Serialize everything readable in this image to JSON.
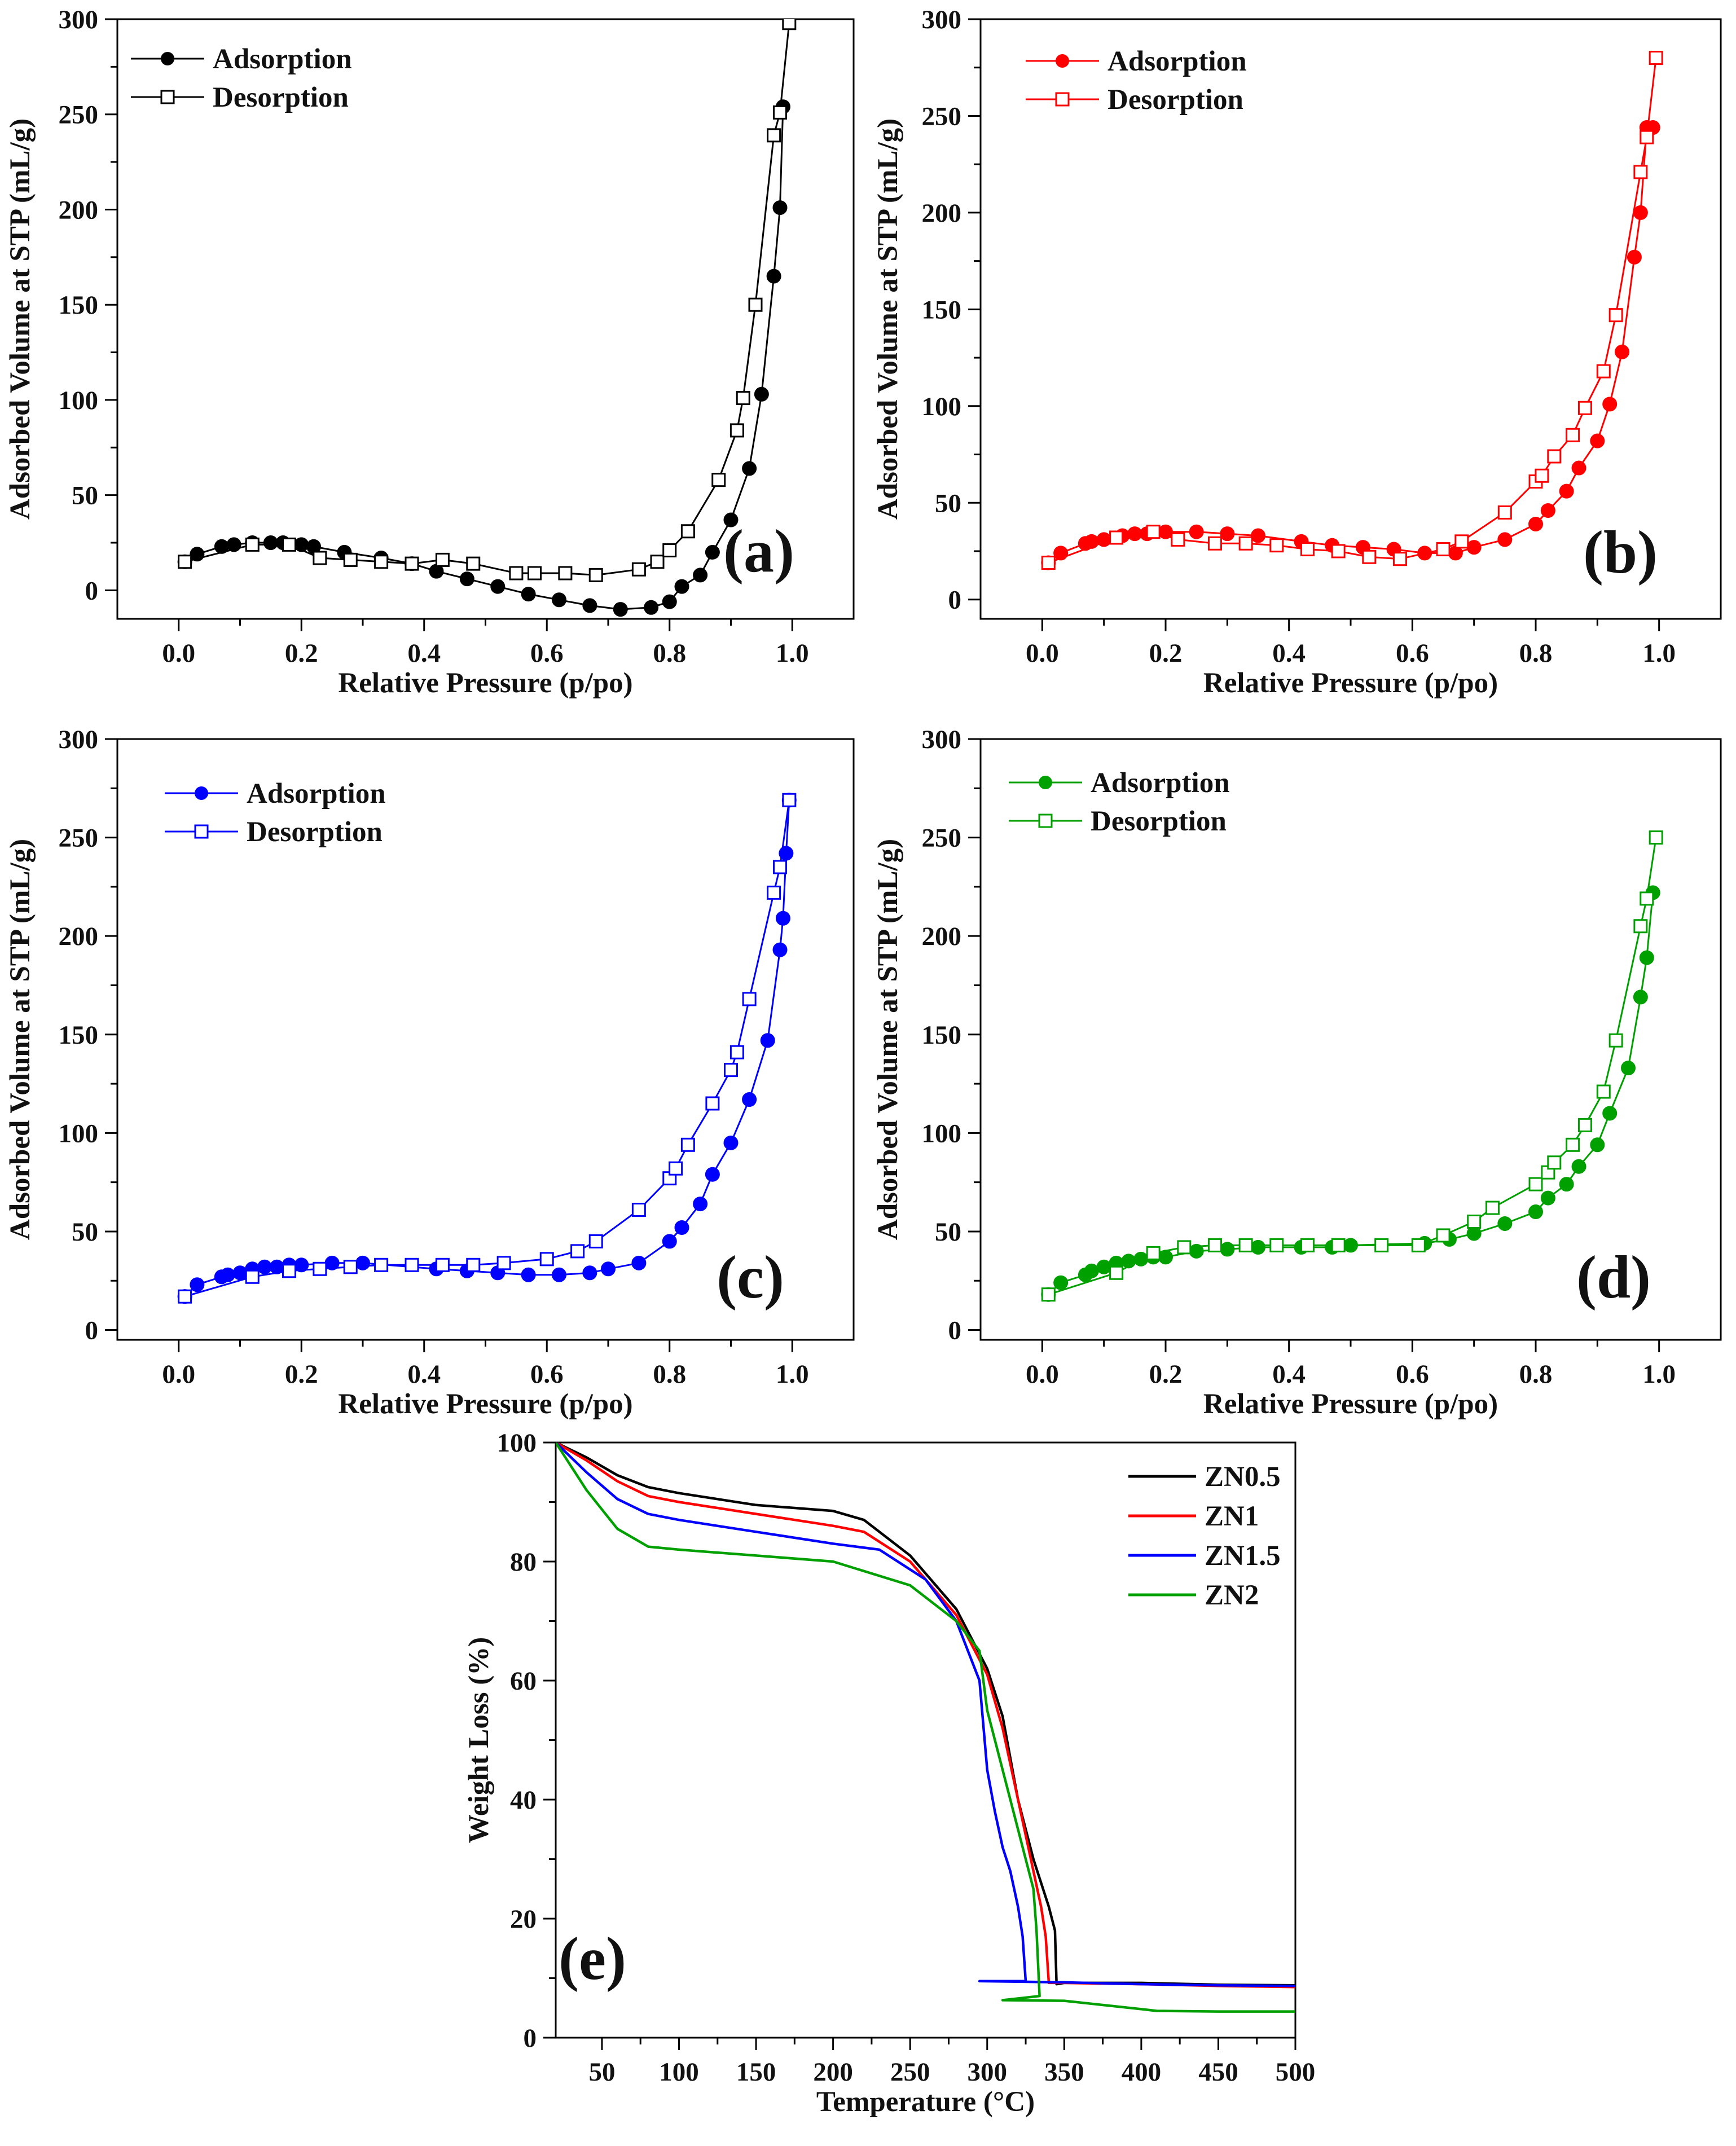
{
  "chart_data": [
    {
      "id": "a",
      "type": "line",
      "panel_label": "(a)",
      "title": "",
      "xlabel": "Relative Pressure (p/po)",
      "ylabel": "Adsorbed Volume at STP (mL/g)",
      "xlim": [
        -0.1,
        1.1
      ],
      "ylim": [
        -15,
        300
      ],
      "xticks": [
        0.0,
        0.2,
        0.4,
        0.6,
        0.8,
        1.0
      ],
      "xtick_labels": [
        "0.0",
        "0.2",
        "0.4",
        "0.6",
        "0.8",
        "1.0"
      ],
      "yticks": [
        0,
        50,
        100,
        150,
        200,
        250,
        300
      ],
      "ytick_labels": [
        "0",
        "50",
        "100",
        "150",
        "200",
        "250",
        "300"
      ],
      "color": "#000000",
      "legend_position": "top-left",
      "series": [
        {
          "name": "Adsorption",
          "marker": "filled-circle",
          "x": [
            0.01,
            0.03,
            0.07,
            0.09,
            0.12,
            0.15,
            0.17,
            0.2,
            0.22,
            0.27,
            0.33,
            0.38,
            0.42,
            0.47,
            0.52,
            0.57,
            0.62,
            0.67,
            0.72,
            0.77,
            0.8,
            0.82,
            0.85,
            0.87,
            0.9,
            0.93,
            0.95,
            0.97,
            0.98,
            0.985
          ],
          "y": [
            15,
            19,
            23,
            24,
            25,
            25,
            25,
            24,
            23,
            20,
            17,
            14,
            10,
            6,
            2,
            -2,
            -5,
            -8,
            -10,
            -9,
            -6,
            2,
            8,
            20,
            37,
            64,
            103,
            165,
            201,
            254
          ]
        },
        {
          "name": "Desorption",
          "marker": "open-square",
          "x": [
            0.01,
            0.12,
            0.18,
            0.23,
            0.28,
            0.33,
            0.38,
            0.43,
            0.48,
            0.55,
            0.58,
            0.63,
            0.68,
            0.75,
            0.78,
            0.8,
            0.83,
            0.88,
            0.91,
            0.92,
            0.94,
            0.97,
            0.98,
            0.995
          ],
          "y": [
            15,
            24,
            24,
            17,
            16,
            15,
            14,
            16,
            14,
            9,
            9,
            9,
            8,
            11,
            15,
            21,
            31,
            58,
            84,
            101,
            150,
            239,
            251,
            298
          ]
        }
      ]
    },
    {
      "id": "b",
      "type": "line",
      "panel_label": "(b)",
      "title": "",
      "xlabel": "Relative Pressure (p/po)",
      "ylabel": "Adsorbed Volume at STP (mL/g)",
      "xlim": [
        -0.1,
        1.1
      ],
      "ylim": [
        -10,
        300
      ],
      "xticks": [
        0.0,
        0.2,
        0.4,
        0.6,
        0.8,
        1.0
      ],
      "xtick_labels": [
        "0.0",
        "0.2",
        "0.4",
        "0.6",
        "0.8",
        "1.0"
      ],
      "yticks": [
        0,
        50,
        100,
        150,
        200,
        250,
        300
      ],
      "ytick_labels": [
        "0",
        "50",
        "100",
        "150",
        "200",
        "250",
        "300"
      ],
      "color": "#ff0000",
      "legend_position": "top-left",
      "series": [
        {
          "name": "Adsorption",
          "marker": "filled-circle",
          "x": [
            0.01,
            0.03,
            0.07,
            0.08,
            0.1,
            0.13,
            0.15,
            0.17,
            0.2,
            0.25,
            0.3,
            0.35,
            0.42,
            0.47,
            0.52,
            0.57,
            0.62,
            0.67,
            0.7,
            0.75,
            0.8,
            0.82,
            0.85,
            0.87,
            0.9,
            0.92,
            0.94,
            0.96,
            0.97,
            0.98,
            0.99
          ],
          "y": [
            19,
            24,
            29,
            30,
            31,
            33,
            34,
            34,
            35,
            35,
            34,
            33,
            30,
            28,
            27,
            26,
            24,
            24,
            27,
            31,
            39,
            46,
            56,
            68,
            82,
            101,
            128,
            177,
            200,
            244,
            244
          ]
        },
        {
          "name": "Desorption",
          "marker": "open-square",
          "x": [
            0.01,
            0.12,
            0.18,
            0.22,
            0.28,
            0.33,
            0.38,
            0.43,
            0.48,
            0.53,
            0.58,
            0.65,
            0.68,
            0.75,
            0.8,
            0.81,
            0.83,
            0.86,
            0.88,
            0.91,
            0.93,
            0.97,
            0.98,
            0.995
          ],
          "y": [
            19,
            32,
            35,
            31,
            29,
            29,
            28,
            26,
            25,
            22,
            21,
            26,
            30,
            45,
            61,
            64,
            74,
            85,
            99,
            118,
            147,
            221,
            239,
            280
          ]
        }
      ]
    },
    {
      "id": "c",
      "type": "line",
      "panel_label": "(c)",
      "title": "",
      "xlabel": "Relative Pressure (p/po)",
      "ylabel": "Adsorbed Volume at STP (mL/g)",
      "xlim": [
        -0.1,
        1.1
      ],
      "ylim": [
        -5,
        300
      ],
      "xticks": [
        0.0,
        0.2,
        0.4,
        0.6,
        0.8,
        1.0
      ],
      "xtick_labels": [
        "0.0",
        "0.2",
        "0.4",
        "0.6",
        "0.8",
        "1.0"
      ],
      "yticks": [
        0,
        50,
        100,
        150,
        200,
        250,
        300
      ],
      "ytick_labels": [
        "0",
        "50",
        "100",
        "150",
        "200",
        "250",
        "300"
      ],
      "color": "#0000ff",
      "legend_position": "top-left",
      "series": [
        {
          "name": "Adsorption",
          "marker": "filled-circle",
          "x": [
            0.01,
            0.03,
            0.07,
            0.08,
            0.1,
            0.12,
            0.14,
            0.16,
            0.18,
            0.2,
            0.25,
            0.3,
            0.42,
            0.47,
            0.52,
            0.57,
            0.62,
            0.67,
            0.7,
            0.75,
            0.8,
            0.82,
            0.85,
            0.87,
            0.9,
            0.93,
            0.96,
            0.98,
            0.985,
            0.99,
            0.995
          ],
          "y": [
            17,
            23,
            27,
            28,
            29,
            31,
            32,
            32,
            33,
            33,
            34,
            34,
            31,
            30,
            29,
            28,
            28,
            29,
            31,
            34,
            45,
            52,
            64,
            79,
            95,
            117,
            147,
            193,
            209,
            242,
            269
          ]
        },
        {
          "name": "Desorption",
          "marker": "open-square",
          "x": [
            0.01,
            0.12,
            0.18,
            0.23,
            0.28,
            0.33,
            0.38,
            0.43,
            0.48,
            0.53,
            0.6,
            0.65,
            0.68,
            0.75,
            0.8,
            0.81,
            0.83,
            0.87,
            0.9,
            0.91,
            0.93,
            0.97,
            0.98,
            0.995
          ],
          "y": [
            17,
            27,
            30,
            31,
            32,
            33,
            33,
            33,
            33,
            34,
            36,
            40,
            45,
            61,
            77,
            82,
            94,
            115,
            132,
            141,
            168,
            222,
            235,
            269
          ]
        }
      ]
    },
    {
      "id": "d",
      "type": "line",
      "panel_label": "(d)",
      "title": "",
      "xlabel": "Relative Pressure (p/po)",
      "ylabel": "Adsorbed Volume at STP (mL/g)",
      "xlim": [
        -0.1,
        1.1
      ],
      "ylim": [
        -5,
        300
      ],
      "xticks": [
        0.0,
        0.2,
        0.4,
        0.6,
        0.8,
        1.0
      ],
      "xtick_labels": [
        "0.0",
        "0.2",
        "0.4",
        "0.6",
        "0.8",
        "1.0"
      ],
      "yticks": [
        0,
        50,
        100,
        150,
        200,
        250,
        300
      ],
      "ytick_labels": [
        "0",
        "50",
        "100",
        "150",
        "200",
        "250",
        "300"
      ],
      "color": "#00a000",
      "legend_position": "top-left",
      "series": [
        {
          "name": "Adsorption",
          "marker": "filled-circle",
          "x": [
            0.01,
            0.03,
            0.07,
            0.08,
            0.1,
            0.12,
            0.14,
            0.16,
            0.18,
            0.2,
            0.25,
            0.3,
            0.35,
            0.42,
            0.47,
            0.5,
            0.62,
            0.66,
            0.7,
            0.75,
            0.8,
            0.82,
            0.85,
            0.87,
            0.9,
            0.92,
            0.95,
            0.97,
            0.98,
            0.99
          ],
          "y": [
            18,
            24,
            28,
            30,
            32,
            34,
            35,
            36,
            37,
            37,
            40,
            41,
            42,
            42,
            42,
            43,
            44,
            46,
            49,
            54,
            60,
            67,
            74,
            83,
            94,
            110,
            133,
            169,
            189,
            222
          ]
        },
        {
          "name": "Desorption",
          "marker": "open-square",
          "x": [
            0.01,
            0.12,
            0.18,
            0.23,
            0.28,
            0.33,
            0.38,
            0.43,
            0.48,
            0.55,
            0.61,
            0.65,
            0.7,
            0.73,
            0.8,
            0.82,
            0.83,
            0.86,
            0.88,
            0.91,
            0.93,
            0.97,
            0.98,
            0.995
          ],
          "y": [
            18,
            29,
            39,
            42,
            43,
            43,
            43,
            43,
            43,
            43,
            43,
            48,
            55,
            62,
            74,
            80,
            85,
            94,
            104,
            121,
            147,
            205,
            219,
            250
          ]
        }
      ]
    },
    {
      "id": "e",
      "type": "line",
      "panel_label": "(e)",
      "title": "",
      "xlabel": "Temperature (°C)",
      "ylabel": "Weight Loss (%)",
      "xlim": [
        20,
        500
      ],
      "ylim": [
        0,
        100
      ],
      "xticks": [
        50,
        100,
        150,
        200,
        250,
        300,
        350,
        400,
        450,
        500
      ],
      "xtick_labels": [
        "50",
        "100",
        "150",
        "200",
        "250",
        "300",
        "350",
        "400",
        "450",
        "500"
      ],
      "yticks": [
        0,
        20,
        40,
        60,
        80,
        100
      ],
      "ytick_labels": [
        "0",
        "20",
        "40",
        "60",
        "80",
        "100"
      ],
      "legend_position": "top-right",
      "series": [
        {
          "name": "ZN0.5",
          "color": "#000000",
          "x": [
            20,
            40,
            60,
            80,
            100,
            150,
            200,
            220,
            250,
            280,
            300,
            310,
            320,
            330,
            340,
            344,
            345,
            350,
            400,
            450,
            500
          ],
          "y": [
            100,
            97.5,
            94.5,
            92.5,
            91.5,
            89.5,
            88.5,
            87,
            81,
            72,
            62,
            54,
            40,
            30,
            22,
            18,
            9,
            9.2,
            9.2,
            8.9,
            8.8
          ]
        },
        {
          "name": "ZN1",
          "color": "#ff0000",
          "x": [
            20,
            40,
            60,
            80,
            100,
            150,
            200,
            220,
            250,
            280,
            300,
            310,
            320,
            330,
            335,
            338,
            340,
            350,
            400,
            450,
            500
          ],
          "y": [
            100,
            97,
            93.5,
            91,
            90,
            88,
            86,
            85,
            80,
            71,
            61,
            52,
            40,
            28,
            22,
            17,
            9.2,
            9.2,
            9,
            8.7,
            8.5
          ]
        },
        {
          "name": "ZN1.5",
          "color": "#0000ff",
          "x": [
            20,
            40,
            60,
            80,
            100,
            150,
            200,
            230,
            260,
            280,
            295,
            300,
            305,
            310,
            315,
            320,
            323,
            325,
            295,
            350,
            400,
            450,
            500
          ],
          "y": [
            100,
            95,
            90.5,
            88,
            87,
            85,
            83,
            82,
            77,
            70,
            60,
            45,
            38,
            32,
            28,
            22,
            17,
            9.5,
            9.5,
            9.3,
            9,
            8.8,
            8.7
          ]
        },
        {
          "name": "ZN2",
          "color": "#00a000",
          "x": [
            20,
            40,
            60,
            80,
            100,
            150,
            200,
            250,
            280,
            295,
            300,
            310,
            320,
            325,
            330,
            332,
            334,
            310,
            350,
            400,
            410,
            450,
            500
          ],
          "y": [
            100,
            92,
            85.5,
            82.5,
            82,
            81,
            80,
            76,
            70,
            65,
            55,
            45,
            35,
            30,
            25,
            18,
            7,
            6.3,
            6.2,
            4.8,
            4.5,
            4.4,
            4.4
          ]
        }
      ]
    }
  ]
}
